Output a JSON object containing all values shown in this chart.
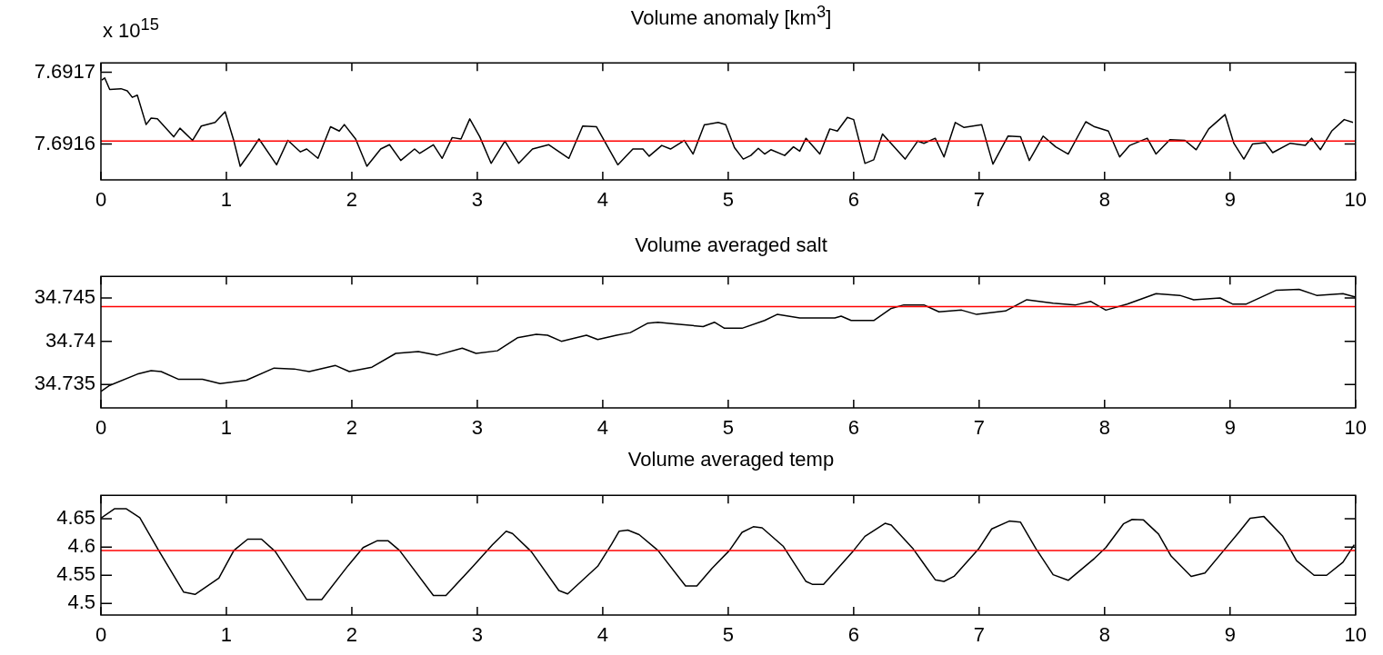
{
  "chart_data": [
    {
      "type": "line",
      "title": "Volume anomaly [km$^{3}$]",
      "annotations": [
        "x 10$^{15}$"
      ],
      "xlim": [
        0,
        10
      ],
      "xticks": [
        0,
        1,
        2,
        3,
        4,
        5,
        6,
        7,
        8,
        9,
        10
      ],
      "ylim": [
        7.69155,
        7.691713
      ],
      "yticks": [
        7.6916,
        7.6917
      ],
      "grid": false,
      "series": [
        {
          "color": "#000000",
          "x": [
            0.007,
            0.03,
            0.07,
            0.16,
            0.21,
            0.25,
            0.29,
            0.36,
            0.4,
            0.45,
            0.58,
            0.63,
            0.73,
            0.8,
            0.91,
            0.99,
            1.06,
            1.11,
            1.18,
            1.26,
            1.4,
            1.49,
            1.59,
            1.64,
            1.73,
            1.83,
            1.9,
            1.94,
            2.03,
            2.12,
            2.23,
            2.3,
            2.39,
            2.5,
            2.54,
            2.65,
            2.72,
            2.8,
            2.87,
            2.94,
            3.02,
            3.11,
            3.22,
            3.33,
            3.44,
            3.57,
            3.73,
            3.84,
            3.95,
            4.12,
            4.24,
            4.32,
            4.37,
            4.47,
            4.54,
            4.65,
            4.72,
            4.81,
            4.82,
            4.92,
            4.98,
            5.05,
            5.12,
            5.18,
            5.24,
            5.29,
            5.34,
            5.45,
            5.52,
            5.57,
            5.62,
            5.73,
            5.81,
            5.87,
            5.95,
            6.0,
            6.09,
            6.16,
            6.23,
            6.41,
            6.51,
            6.56,
            6.65,
            6.72,
            6.81,
            6.88,
            7.02,
            7.11,
            7.23,
            7.33,
            7.4,
            7.51,
            7.61,
            7.71,
            7.85,
            7.92,
            8.03,
            8.12,
            8.2,
            8.34,
            8.41,
            8.52,
            8.64,
            8.73,
            8.83,
            8.96,
            9.03,
            9.11,
            9.18,
            9.28,
            9.34,
            9.48,
            9.6,
            9.65,
            9.72,
            9.81,
            9.91,
            9.98
          ],
          "values": [
            7.691689,
            7.691692,
            7.691676,
            7.691677,
            7.691674,
            7.691665,
            7.691668,
            7.691627,
            7.691636,
            7.691635,
            7.69161,
            7.691622,
            7.691605,
            7.691625,
            7.69163,
            7.691645,
            7.691604,
            7.691569,
            7.691586,
            7.691607,
            7.691571,
            7.691605,
            7.691589,
            7.691593,
            7.69158,
            7.691624,
            7.691618,
            7.691627,
            7.691607,
            7.691569,
            7.691593,
            7.691599,
            7.691577,
            7.691593,
            7.691587,
            7.691599,
            7.69158,
            7.691609,
            7.691607,
            7.691635,
            7.69161,
            7.691573,
            7.691604,
            7.691573,
            7.691593,
            7.691599,
            7.69158,
            7.691625,
            7.691624,
            7.691571,
            7.691593,
            7.691593,
            7.691583,
            7.691598,
            7.691593,
            7.691605,
            7.691586,
            7.691627,
            7.691627,
            7.69163,
            7.691627,
            7.691595,
            7.691579,
            7.691584,
            7.691594,
            7.691586,
            7.691592,
            7.691584,
            7.691596,
            7.69159,
            7.691608,
            7.691586,
            7.691621,
            7.691618,
            7.691637,
            7.691634,
            7.691573,
            7.691578,
            7.691614,
            7.691579,
            7.691604,
            7.691601,
            7.691608,
            7.691582,
            7.69163,
            7.691623,
            7.691627,
            7.691572,
            7.691611,
            7.69161,
            7.691577,
            7.691611,
            7.691596,
            7.691586,
            7.691631,
            7.691624,
            7.691618,
            7.691582,
            7.691598,
            7.691608,
            7.691586,
            7.691606,
            7.691605,
            7.691592,
            7.691621,
            7.691641,
            7.691601,
            7.691579,
            7.6916,
            7.691602,
            7.691588,
            7.691601,
            7.691598,
            7.691608,
            7.691592,
            7.691618,
            7.691634,
            7.69163
          ]
        }
      ],
      "ref_lines": [
        {
          "axis": "y",
          "value": 7.691604,
          "color": "#ff0000"
        }
      ]
    },
    {
      "type": "line",
      "title": "Volume averaged salt",
      "xlim": [
        0,
        10
      ],
      "xticks": [
        0,
        1,
        2,
        3,
        4,
        5,
        6,
        7,
        8,
        9,
        10
      ],
      "ylim": [
        34.7323,
        34.7475
      ],
      "yticks": [
        34.735,
        34.74,
        34.745
      ],
      "grid": false,
      "series": [
        {
          "color": "#000000",
          "x": [
            0,
            0.07,
            0.29,
            0.4,
            0.48,
            0.62,
            0.81,
            0.95,
            1.16,
            1.38,
            1.54,
            1.66,
            1.87,
            1.98,
            2.16,
            2.35,
            2.53,
            2.68,
            2.88,
            2.99,
            3.16,
            3.32,
            3.47,
            3.56,
            3.67,
            3.87,
            3.96,
            4.11,
            4.22,
            4.36,
            4.44,
            4.57,
            4.8,
            4.89,
            4.97,
            5.11,
            5.29,
            5.39,
            5.57,
            5.85,
            5.9,
            5.98,
            6.16,
            6.3,
            6.4,
            6.56,
            6.68,
            6.86,
            6.98,
            7.21,
            7.38,
            7.59,
            7.77,
            7.89,
            8.01,
            8.18,
            8.41,
            8.6,
            8.71,
            8.92,
            9.02,
            9.13,
            9.37,
            9.55,
            9.69,
            9.9,
            10.0
          ],
          "values": [
            34.7342,
            34.7349,
            34.7362,
            34.7366,
            34.7365,
            34.7356,
            34.7356,
            34.7351,
            34.7355,
            34.7369,
            34.7368,
            34.7365,
            34.7372,
            34.7365,
            34.737,
            34.7386,
            34.7388,
            34.7384,
            34.7392,
            34.7386,
            34.7389,
            34.7404,
            34.7408,
            34.7407,
            34.74,
            34.7407,
            34.7402,
            34.7407,
            34.741,
            34.7421,
            34.7422,
            34.742,
            34.7417,
            34.7422,
            34.7415,
            34.7415,
            34.7424,
            34.7431,
            34.7427,
            34.7427,
            34.7429,
            34.7424,
            34.7424,
            34.7438,
            34.7442,
            34.7442,
            34.7434,
            34.7436,
            34.7431,
            34.7435,
            34.7448,
            34.7444,
            34.7442,
            34.7446,
            34.7436,
            34.7443,
            34.7455,
            34.7453,
            34.7448,
            34.745,
            34.7443,
            34.7443,
            34.7459,
            34.746,
            34.7453,
            34.7455,
            34.7451
          ]
        }
      ],
      "ref_lines": [
        {
          "axis": "y",
          "value": 34.744,
          "color": "#ff0000"
        }
      ]
    },
    {
      "type": "line",
      "title": "Volume averaged temp",
      "xlim": [
        0,
        10
      ],
      "xticks": [
        0,
        1,
        2,
        3,
        4,
        5,
        6,
        7,
        8,
        9,
        10
      ],
      "ylim": [
        4.4795,
        4.6917
      ],
      "yticks": [
        4.5,
        4.55,
        4.6,
        4.65
      ],
      "grid": false,
      "series": [
        {
          "color": "#000000",
          "x": [
            0,
            0.11,
            0.2,
            0.31,
            0.46,
            0.66,
            0.75,
            0.94,
            1.06,
            1.17,
            1.28,
            1.39,
            1.64,
            1.76,
            1.97,
            2.09,
            2.2,
            2.29,
            2.38,
            2.65,
            2.75,
            2.97,
            3.12,
            3.23,
            3.28,
            3.43,
            3.65,
            3.72,
            3.96,
            4.07,
            4.13,
            4.2,
            4.29,
            4.44,
            4.66,
            4.75,
            4.87,
            5.01,
            5.11,
            5.2,
            5.27,
            5.44,
            5.62,
            5.67,
            5.76,
            6.0,
            6.09,
            6.25,
            6.3,
            6.47,
            6.65,
            6.72,
            6.8,
            7.0,
            7.1,
            7.24,
            7.33,
            7.45,
            7.59,
            7.71,
            7.92,
            8.01,
            8.15,
            8.22,
            8.31,
            8.43,
            8.53,
            8.69,
            8.8,
            8.95,
            9.07,
            9.16,
            9.27,
            9.42,
            9.53,
            9.67,
            9.77,
            9.9,
            9.99
          ],
          "values": [
            4.651,
            4.668,
            4.668,
            4.652,
            4.594,
            4.52,
            4.516,
            4.545,
            4.594,
            4.614,
            4.614,
            4.592,
            4.507,
            4.507,
            4.567,
            4.599,
            4.611,
            4.611,
            4.594,
            4.514,
            4.514,
            4.567,
            4.604,
            4.628,
            4.624,
            4.592,
            4.523,
            4.517,
            4.566,
            4.605,
            4.628,
            4.63,
            4.622,
            4.594,
            4.531,
            4.531,
            4.562,
            4.594,
            4.626,
            4.636,
            4.634,
            4.601,
            4.539,
            4.534,
            4.534,
            4.594,
            4.619,
            4.642,
            4.639,
            4.598,
            4.542,
            4.539,
            4.548,
            4.598,
            4.632,
            4.646,
            4.644,
            4.598,
            4.551,
            4.541,
            4.58,
            4.599,
            4.641,
            4.649,
            4.648,
            4.623,
            4.584,
            4.548,
            4.554,
            4.594,
            4.626,
            4.651,
            4.654,
            4.619,
            4.576,
            4.55,
            4.55,
            4.573,
            4.604
          ]
        }
      ],
      "ref_lines": [
        {
          "axis": "y",
          "value": 4.594,
          "color": "#ff0000"
        }
      ]
    }
  ]
}
